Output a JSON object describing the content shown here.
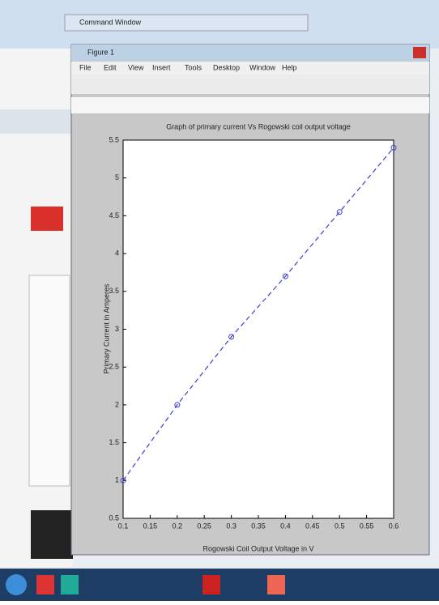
{
  "window": {
    "title": "Command Window"
  },
  "figure": {
    "title": "Figure 1",
    "menu": [
      "File",
      "Edit",
      "View",
      "Insert",
      "Tools",
      "Desktop",
      "Window",
      "Help"
    ]
  },
  "chart_data": {
    "type": "line",
    "title": "Graph of primary current Vs Rogowski coil output voltage",
    "x_label": "Rogowski Coil Output Voltage in V",
    "y_label": "Primary Current in Amperes",
    "x": [
      0.1,
      0.2,
      0.3,
      0.4,
      0.5,
      0.6
    ],
    "values": [
      1,
      2,
      2.9,
      3.7,
      4.55,
      5.4
    ],
    "color": "#4040d0",
    "line_style": "dashed",
    "marker": "circle",
    "xlim": [
      0.1,
      0.6
    ],
    "ylim": [
      0.5,
      5.5
    ],
    "xticks": [
      0.1,
      0.15,
      0.2,
      0.25,
      0.3,
      0.35,
      0.4,
      0.45,
      0.5,
      0.55,
      0.6
    ],
    "yticks": [
      0.5,
      1,
      1.5,
      2,
      2.5,
      3,
      3.5,
      4,
      4.5,
      5,
      5.5
    ]
  }
}
